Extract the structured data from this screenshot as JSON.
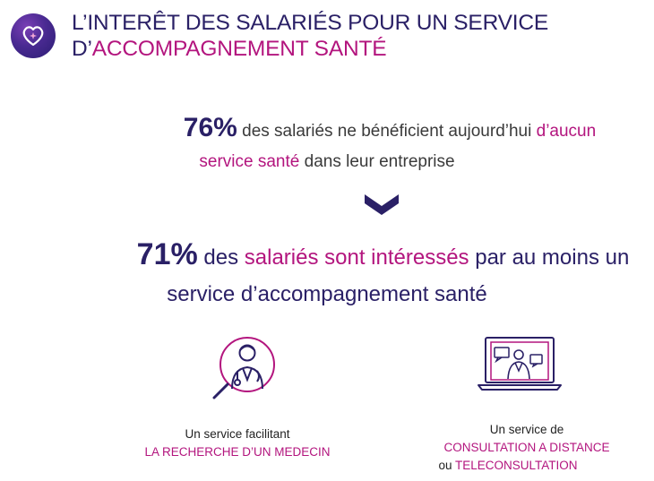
{
  "header": {
    "title_line1": "L’INTERÊT DES SALARIÉS POUR UN SERVICE",
    "title_line2_prefix": "D’",
    "title_line2_accent": "ACCOMPAGNEMENT SANTÉ"
  },
  "stat1": {
    "percent": "76%",
    "text_a": " des salariés ne bénéficient aujourd’hui ",
    "text_accent_a": "d’aucun",
    "text_accent_b": "service santé",
    "text_b": " dans leur entreprise"
  },
  "stat2": {
    "percent": "71%",
    "text_a": " des ",
    "text_accent": "salariés sont intéressés",
    "text_b": " par au moins un",
    "line2": "service d’accompagnement santé"
  },
  "services": [
    {
      "line1": "Un service facilitant",
      "line2": "LA RECHERCHE D’UN MEDECIN",
      "icon": "doctor-search-icon"
    },
    {
      "line1": "Un service de",
      "line2": "CONSULTATION A DISTANCE",
      "line3_prefix": "ou ",
      "line3_accent": "TELECONSULTATION",
      "icon": "teleconsultation-laptop-icon"
    }
  ],
  "colors": {
    "navy": "#2a2066",
    "accent": "#b3157e",
    "text": "#3a3a3a"
  },
  "logo_icon": "heart-star-icon"
}
